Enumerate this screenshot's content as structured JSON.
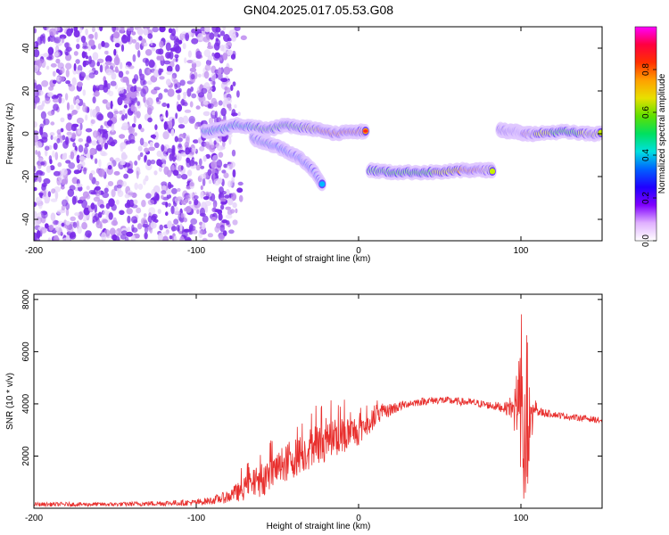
{
  "figure": {
    "title": "GN04.2025.017.05.53.G08"
  },
  "colors": {
    "snr_line": "#e8302e",
    "speckle": "#7a2be8",
    "axis": "#000000",
    "colormap": [
      "#ffffff",
      "#e8c8ff",
      "#a050ff",
      "#3020ff",
      "#00b8ff",
      "#00e0a0",
      "#40e040",
      "#c8f000",
      "#ffa000",
      "#ff2020",
      "#ff4080"
    ]
  },
  "chart_data": [
    {
      "type": "heatmap",
      "title": "GN04.2025.017.05.53.G08",
      "xlabel": "Height of straight line (km)",
      "ylabel": "Frequency (Hz)",
      "xlim": [
        -200,
        150
      ],
      "ylim": [
        -50,
        50
      ],
      "xticks": [
        -200,
        -100,
        0,
        100
      ],
      "yticks": [
        -40,
        -20,
        0,
        20,
        40
      ],
      "ytick_labels": [
        "-40",
        "-20",
        "0",
        "20",
        "40"
      ],
      "grid": false,
      "colorbar": {
        "label": "Normalized spectral amplitude",
        "range": [
          0,
          1
        ],
        "ticks": [
          0.0,
          0.2,
          0.4,
          0.6,
          0.8
        ],
        "tick_labels": [
          "0.0",
          "0.2",
          "0.4",
          "0.6",
          "0.8"
        ]
      },
      "noise_region": {
        "x": [
          -200,
          -82
        ],
        "y": [
          -50,
          50
        ]
      },
      "tracks": [
        {
          "x": [
            -95,
            -85,
            -75,
            -65,
            -55,
            -45,
            -35,
            -25,
            -15,
            -5,
            5
          ],
          "y": [
            1,
            2,
            4,
            3,
            2,
            4,
            3,
            2,
            0,
            1,
            1
          ],
          "amp": [
            0.3,
            0.35,
            0.4,
            0.45,
            0.5,
            0.55,
            0.6,
            0.8,
            0.95,
            0.9,
            0.85
          ]
        },
        {
          "x": [
            -65,
            -58,
            -50,
            -42,
            -35,
            -28,
            -22
          ],
          "y": [
            -2,
            -4,
            -6,
            -9,
            -12,
            -17,
            -24
          ],
          "amp": [
            0.3,
            0.3,
            0.25,
            0.25,
            0.2,
            0.2,
            0.15
          ]
        },
        {
          "x": [
            7,
            20,
            35,
            50,
            65,
            75,
            83
          ],
          "y": [
            -17,
            -18,
            -18,
            -18,
            -17,
            -17,
            -17
          ],
          "amp": [
            0.6,
            0.55,
            0.6,
            0.65,
            0.85,
            0.9,
            0.7
          ]
        },
        {
          "x": [
            87,
            93,
            98,
            102,
            110,
            125,
            140,
            150
          ],
          "y": [
            2,
            1,
            1,
            0,
            0,
            1,
            0,
            0
          ],
          "amp": [
            0.7,
            0.85,
            0.5,
            0.9,
            0.7,
            0.6,
            0.65,
            0.7
          ]
        }
      ]
    },
    {
      "type": "line",
      "xlabel": "Height of straight line (km)",
      "ylabel": "SNR (10 * v/v)",
      "xlim": [
        -200,
        150
      ],
      "ylim": [
        0,
        8200
      ],
      "xticks": [
        -200,
        -100,
        0,
        100
      ],
      "yticks": [
        2000,
        4000,
        6000,
        8000
      ],
      "ytick_labels": [
        "2000",
        "4000",
        "6000",
        "8000"
      ],
      "grid": false,
      "envelope": {
        "x": [
          -200,
          -150,
          -100,
          -90,
          -80,
          -70,
          -60,
          -50,
          -40,
          -30,
          -20,
          -10,
          0,
          10,
          20,
          30,
          40,
          50,
          60,
          70,
          80,
          90,
          95,
          100,
          102,
          104,
          106,
          110,
          120,
          130,
          140,
          150
        ],
        "mean": [
          150,
          150,
          220,
          300,
          450,
          750,
          1100,
          1500,
          1900,
          2300,
          2600,
          2800,
          3000,
          3450,
          3800,
          4000,
          4100,
          4150,
          4100,
          4050,
          3950,
          3850,
          3800,
          3500,
          2000,
          1500,
          3600,
          3700,
          3600,
          3500,
          3450,
          3350
        ],
        "noise": [
          80,
          80,
          120,
          150,
          250,
          450,
          650,
          700,
          750,
          800,
          800,
          700,
          600,
          350,
          250,
          150,
          150,
          150,
          150,
          150,
          150,
          200,
          500,
          2600,
          2800,
          2400,
          1500,
          200,
          120,
          120,
          120,
          120
        ]
      }
    }
  ]
}
